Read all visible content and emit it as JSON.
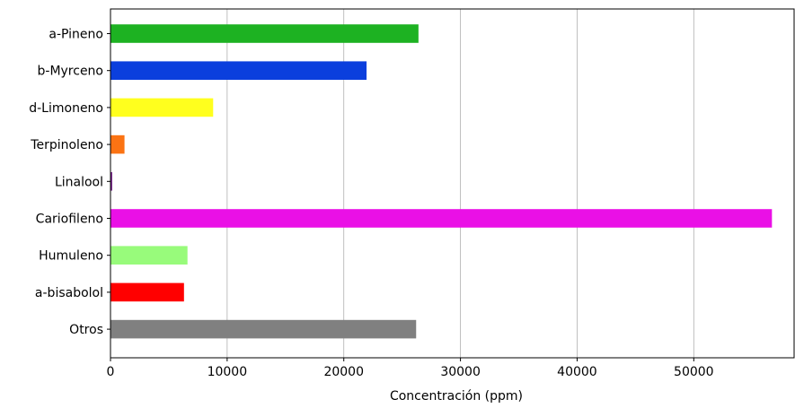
{
  "chart_data": {
    "type": "bar",
    "orientation": "horizontal",
    "categories": [
      "a-Pineno",
      "b-Myrceno",
      "d-Limoneno",
      "Terpinoleno",
      "Linalool",
      "Cariofileno",
      "Humuleno",
      "a-bisabolol",
      "Otros"
    ],
    "values": [
      26400,
      21950,
      8800,
      1200,
      150,
      56700,
      6600,
      6300,
      26200
    ],
    "colors": [
      "#1db222",
      "#0b3fdd",
      "#ffff1e",
      "#fb7313",
      "#7b2a8e",
      "#ea10e6",
      "#98fb7b",
      "#ff0000",
      "#808080"
    ],
    "xlabel": "Concentración (ppm)",
    "ylabel": "",
    "title": "",
    "xlim": [
      0,
      58600
    ],
    "xticks": [
      0,
      10000,
      20000,
      30000,
      40000,
      50000
    ],
    "xtick_labels": [
      "0",
      "10000",
      "20000",
      "30000",
      "40000",
      "50000"
    ],
    "grid": "vertical",
    "legend": "none"
  }
}
